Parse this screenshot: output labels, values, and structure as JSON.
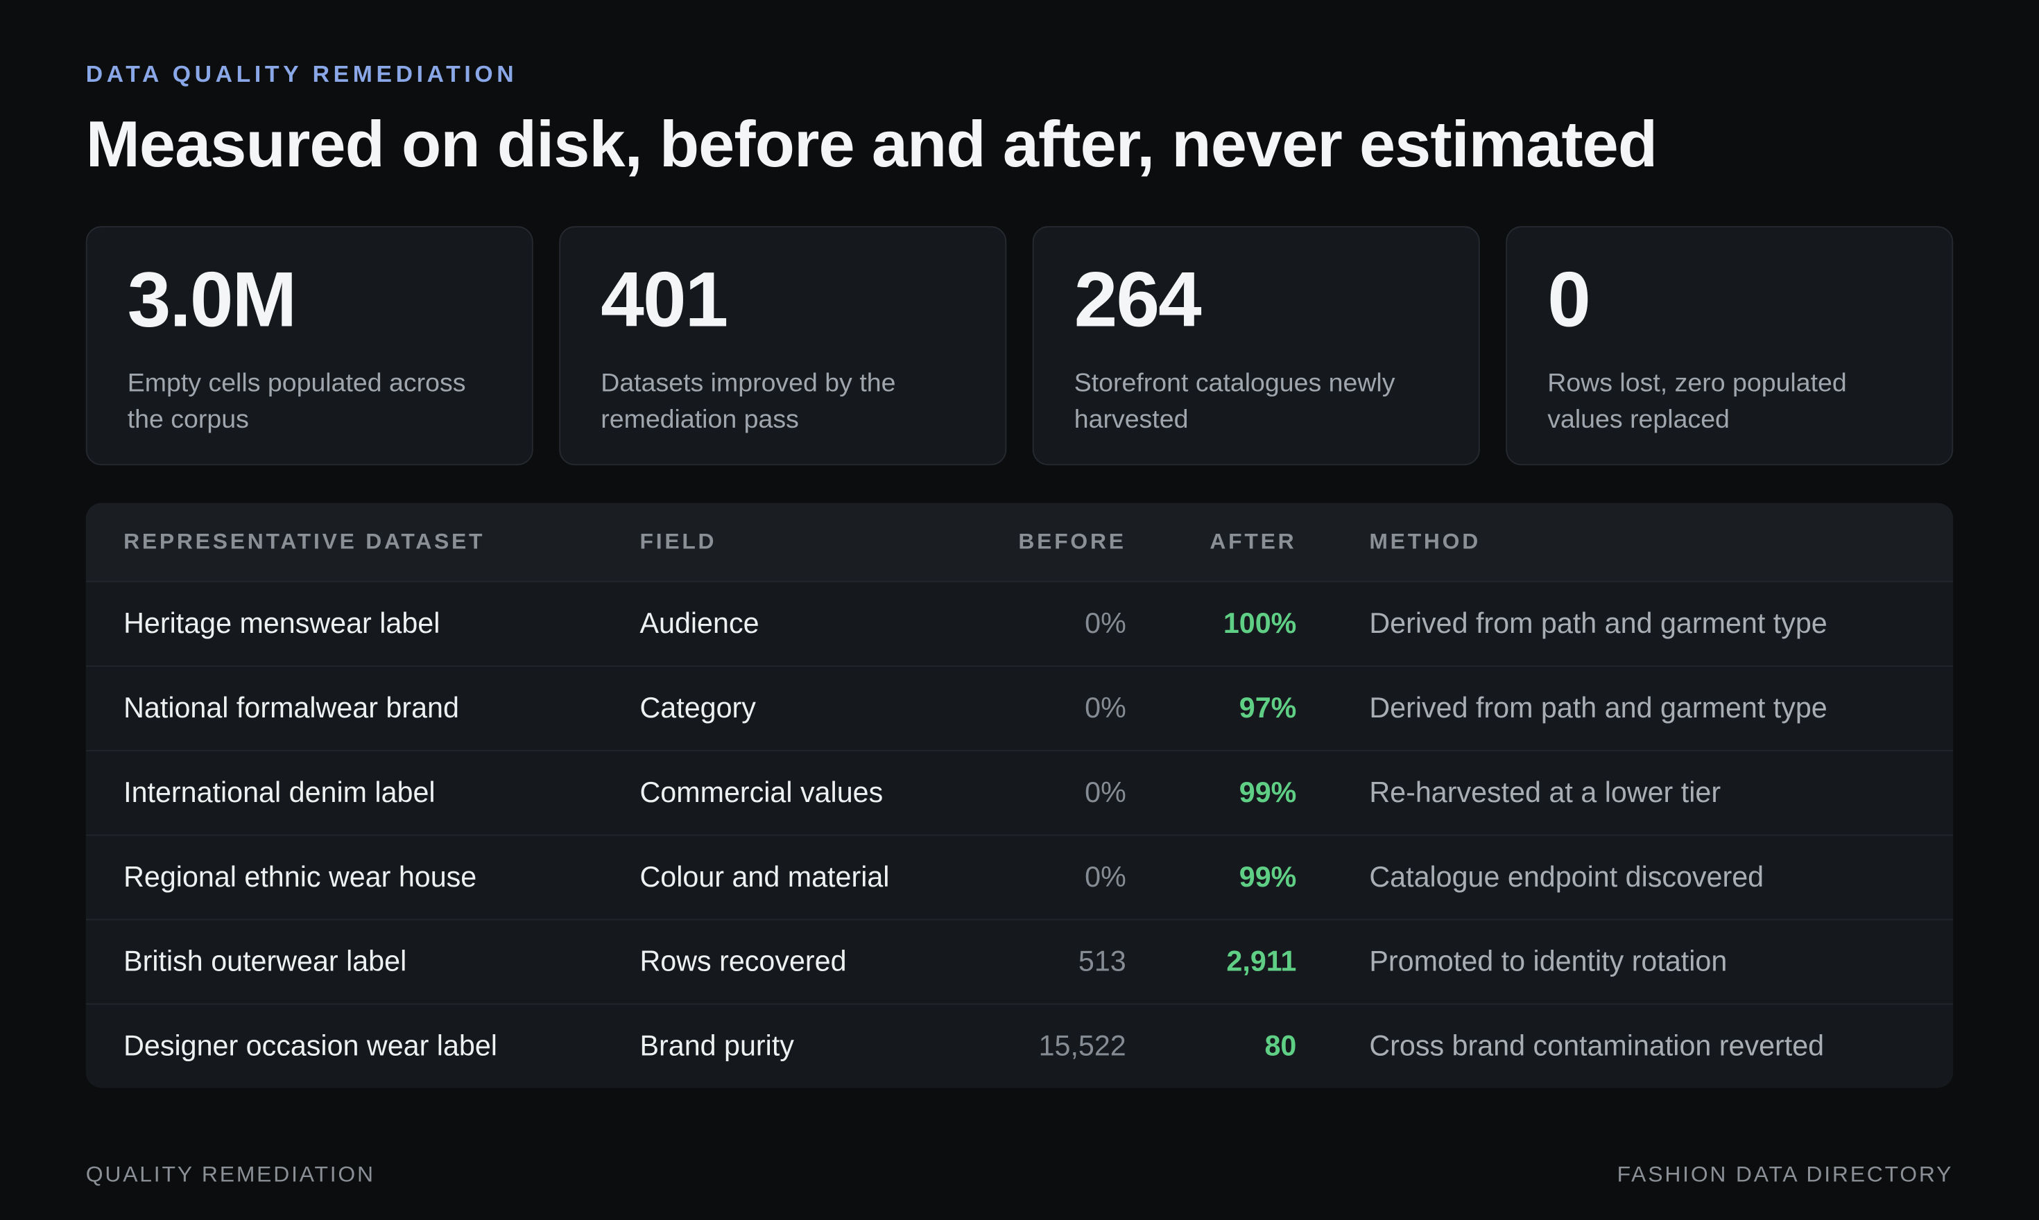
{
  "header": {
    "eyebrow": "DATA QUALITY REMEDIATION",
    "title": "Measured on disk, before and after, never estimated"
  },
  "stats": [
    {
      "value": "3.0M",
      "label": "Empty cells populated across the corpus"
    },
    {
      "value": "401",
      "label": "Datasets improved by the remediation pass"
    },
    {
      "value": "264",
      "label": "Storefront catalogues newly harvested"
    },
    {
      "value": "0",
      "label": "Rows lost, zero populated values replaced"
    }
  ],
  "table": {
    "columns": [
      "REPRESENTATIVE DATASET",
      "FIELD",
      "BEFORE",
      "AFTER",
      "METHOD"
    ],
    "rows": [
      [
        "Heritage menswear label",
        "Audience",
        "0%",
        "100%",
        "Derived from path and garment type"
      ],
      [
        "National formalwear brand",
        "Category",
        "0%",
        "97%",
        "Derived from path and garment type"
      ],
      [
        "International denim label",
        "Commercial values",
        "0%",
        "99%",
        "Re-harvested at a lower tier"
      ],
      [
        "Regional ethnic wear house",
        "Colour and material",
        "0%",
        "99%",
        "Catalogue endpoint discovered"
      ],
      [
        "British outerwear label",
        "Rows recovered",
        "513",
        "2,911",
        "Promoted to identity rotation"
      ],
      [
        "Designer occasion wear label",
        "Brand purity",
        "15,522",
        "80",
        "Cross brand contamination reverted"
      ]
    ]
  },
  "footer": {
    "left": "QUALITY REMEDIATION",
    "right": "FASHION DATA DIRECTORY"
  }
}
